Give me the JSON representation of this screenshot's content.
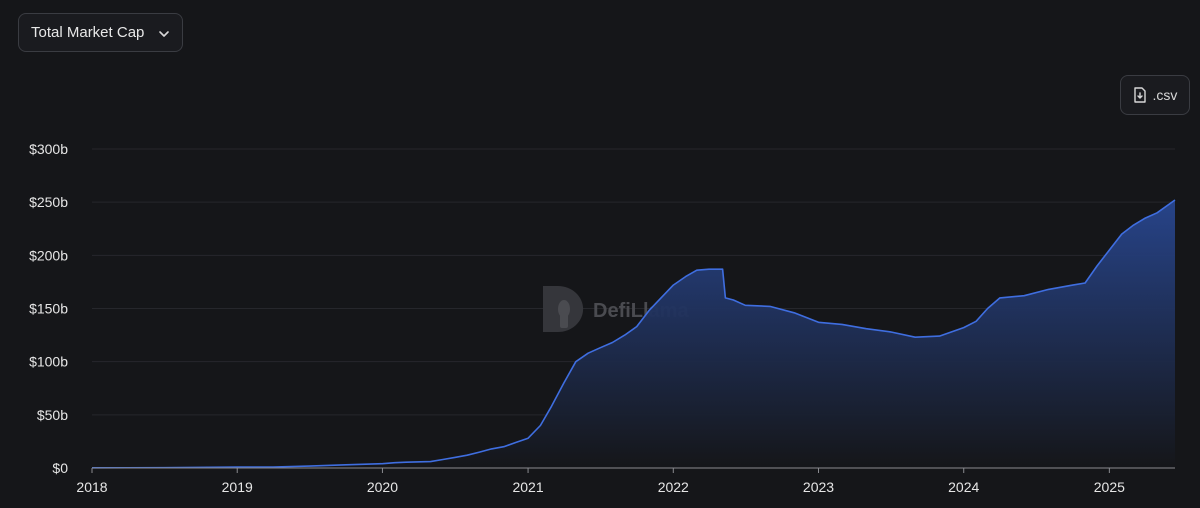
{
  "controls": {
    "metric_selector": "Total Market Cap",
    "csv_label": ".csv"
  },
  "watermark": "DefiLlama",
  "colors": {
    "background": "#151619",
    "line": "#3f6ee0",
    "area_top": "#28468f",
    "area_bottom": "#151619",
    "grid": "#26272c",
    "axis": "#e6e6e6"
  },
  "icons": {
    "selector": "chevron-down-icon",
    "csv": "file-download-icon",
    "watermark": "llama-logo-icon"
  },
  "chart_data": {
    "type": "area",
    "title": "",
    "xlabel": "",
    "ylabel": "",
    "ylim": [
      0,
      300
    ],
    "y_ticks": [
      {
        "value": 0,
        "label": "$0"
      },
      {
        "value": 50,
        "label": "$50b"
      },
      {
        "value": 100,
        "label": "$100b"
      },
      {
        "value": 150,
        "label": "$150b"
      },
      {
        "value": 200,
        "label": "$200b"
      },
      {
        "value": 250,
        "label": "$250b"
      },
      {
        "value": 300,
        "label": "$300b"
      }
    ],
    "x_ticks": [
      "2018",
      "2019",
      "2020",
      "2021",
      "2022",
      "2023",
      "2024",
      "2025"
    ],
    "x_range": [
      "2018-01-01",
      "2025-06-15"
    ],
    "grid": true,
    "series": [
      {
        "name": "",
        "points": [
          [
            "2018-01-01",
            0.2
          ],
          [
            "2018-07-01",
            0.3
          ],
          [
            "2019-01-01",
            0.8
          ],
          [
            "2019-04-01",
            0.9
          ],
          [
            "2019-07-01",
            1.8
          ],
          [
            "2019-10-01",
            3.0
          ],
          [
            "2020-01-01",
            4.0
          ],
          [
            "2020-02-01",
            5.0
          ],
          [
            "2020-03-01",
            5.5
          ],
          [
            "2020-05-01",
            6.0
          ],
          [
            "2020-06-01",
            8.0
          ],
          [
            "2020-07-01",
            10.0
          ],
          [
            "2020-08-01",
            12.0
          ],
          [
            "2020-09-01",
            15.0
          ],
          [
            "2020-10-01",
            18.0
          ],
          [
            "2020-11-01",
            20.0
          ],
          [
            "2020-12-01",
            24.0
          ],
          [
            "2021-01-01",
            28.0
          ],
          [
            "2021-02-01",
            40.0
          ],
          [
            "2021-03-01",
            58.0
          ],
          [
            "2021-04-01",
            80.0
          ],
          [
            "2021-05-01",
            100.0
          ],
          [
            "2021-06-01",
            108.0
          ],
          [
            "2021-07-01",
            113.0
          ],
          [
            "2021-08-01",
            118.0
          ],
          [
            "2021-09-01",
            125.0
          ],
          [
            "2021-10-01",
            133.0
          ],
          [
            "2021-11-01",
            148.0
          ],
          [
            "2021-12-01",
            160.0
          ],
          [
            "2022-01-01",
            172.0
          ],
          [
            "2022-02-01",
            180.0
          ],
          [
            "2022-03-01",
            186.0
          ],
          [
            "2022-04-01",
            187.0
          ],
          [
            "2022-05-05",
            187.0
          ],
          [
            "2022-05-12",
            160.0
          ],
          [
            "2022-06-01",
            158.0
          ],
          [
            "2022-07-01",
            153.0
          ],
          [
            "2022-09-01",
            152.0
          ],
          [
            "2022-11-01",
            146.0
          ],
          [
            "2023-01-01",
            137.0
          ],
          [
            "2023-03-01",
            135.0
          ],
          [
            "2023-05-01",
            131.0
          ],
          [
            "2023-07-01",
            128.0
          ],
          [
            "2023-09-01",
            123.0
          ],
          [
            "2023-11-01",
            124.0
          ],
          [
            "2024-01-01",
            132.0
          ],
          [
            "2024-02-01",
            138.0
          ],
          [
            "2024-03-01",
            150.0
          ],
          [
            "2024-04-01",
            160.0
          ],
          [
            "2024-06-01",
            162.0
          ],
          [
            "2024-08-01",
            168.0
          ],
          [
            "2024-10-01",
            172.0
          ],
          [
            "2024-11-01",
            174.0
          ],
          [
            "2024-12-01",
            190.0
          ],
          [
            "2025-01-01",
            205.0
          ],
          [
            "2025-02-01",
            220.0
          ],
          [
            "2025-03-01",
            228.0
          ],
          [
            "2025-04-01",
            235.0
          ],
          [
            "2025-05-01",
            240.0
          ],
          [
            "2025-06-15",
            252.0
          ]
        ]
      }
    ]
  }
}
